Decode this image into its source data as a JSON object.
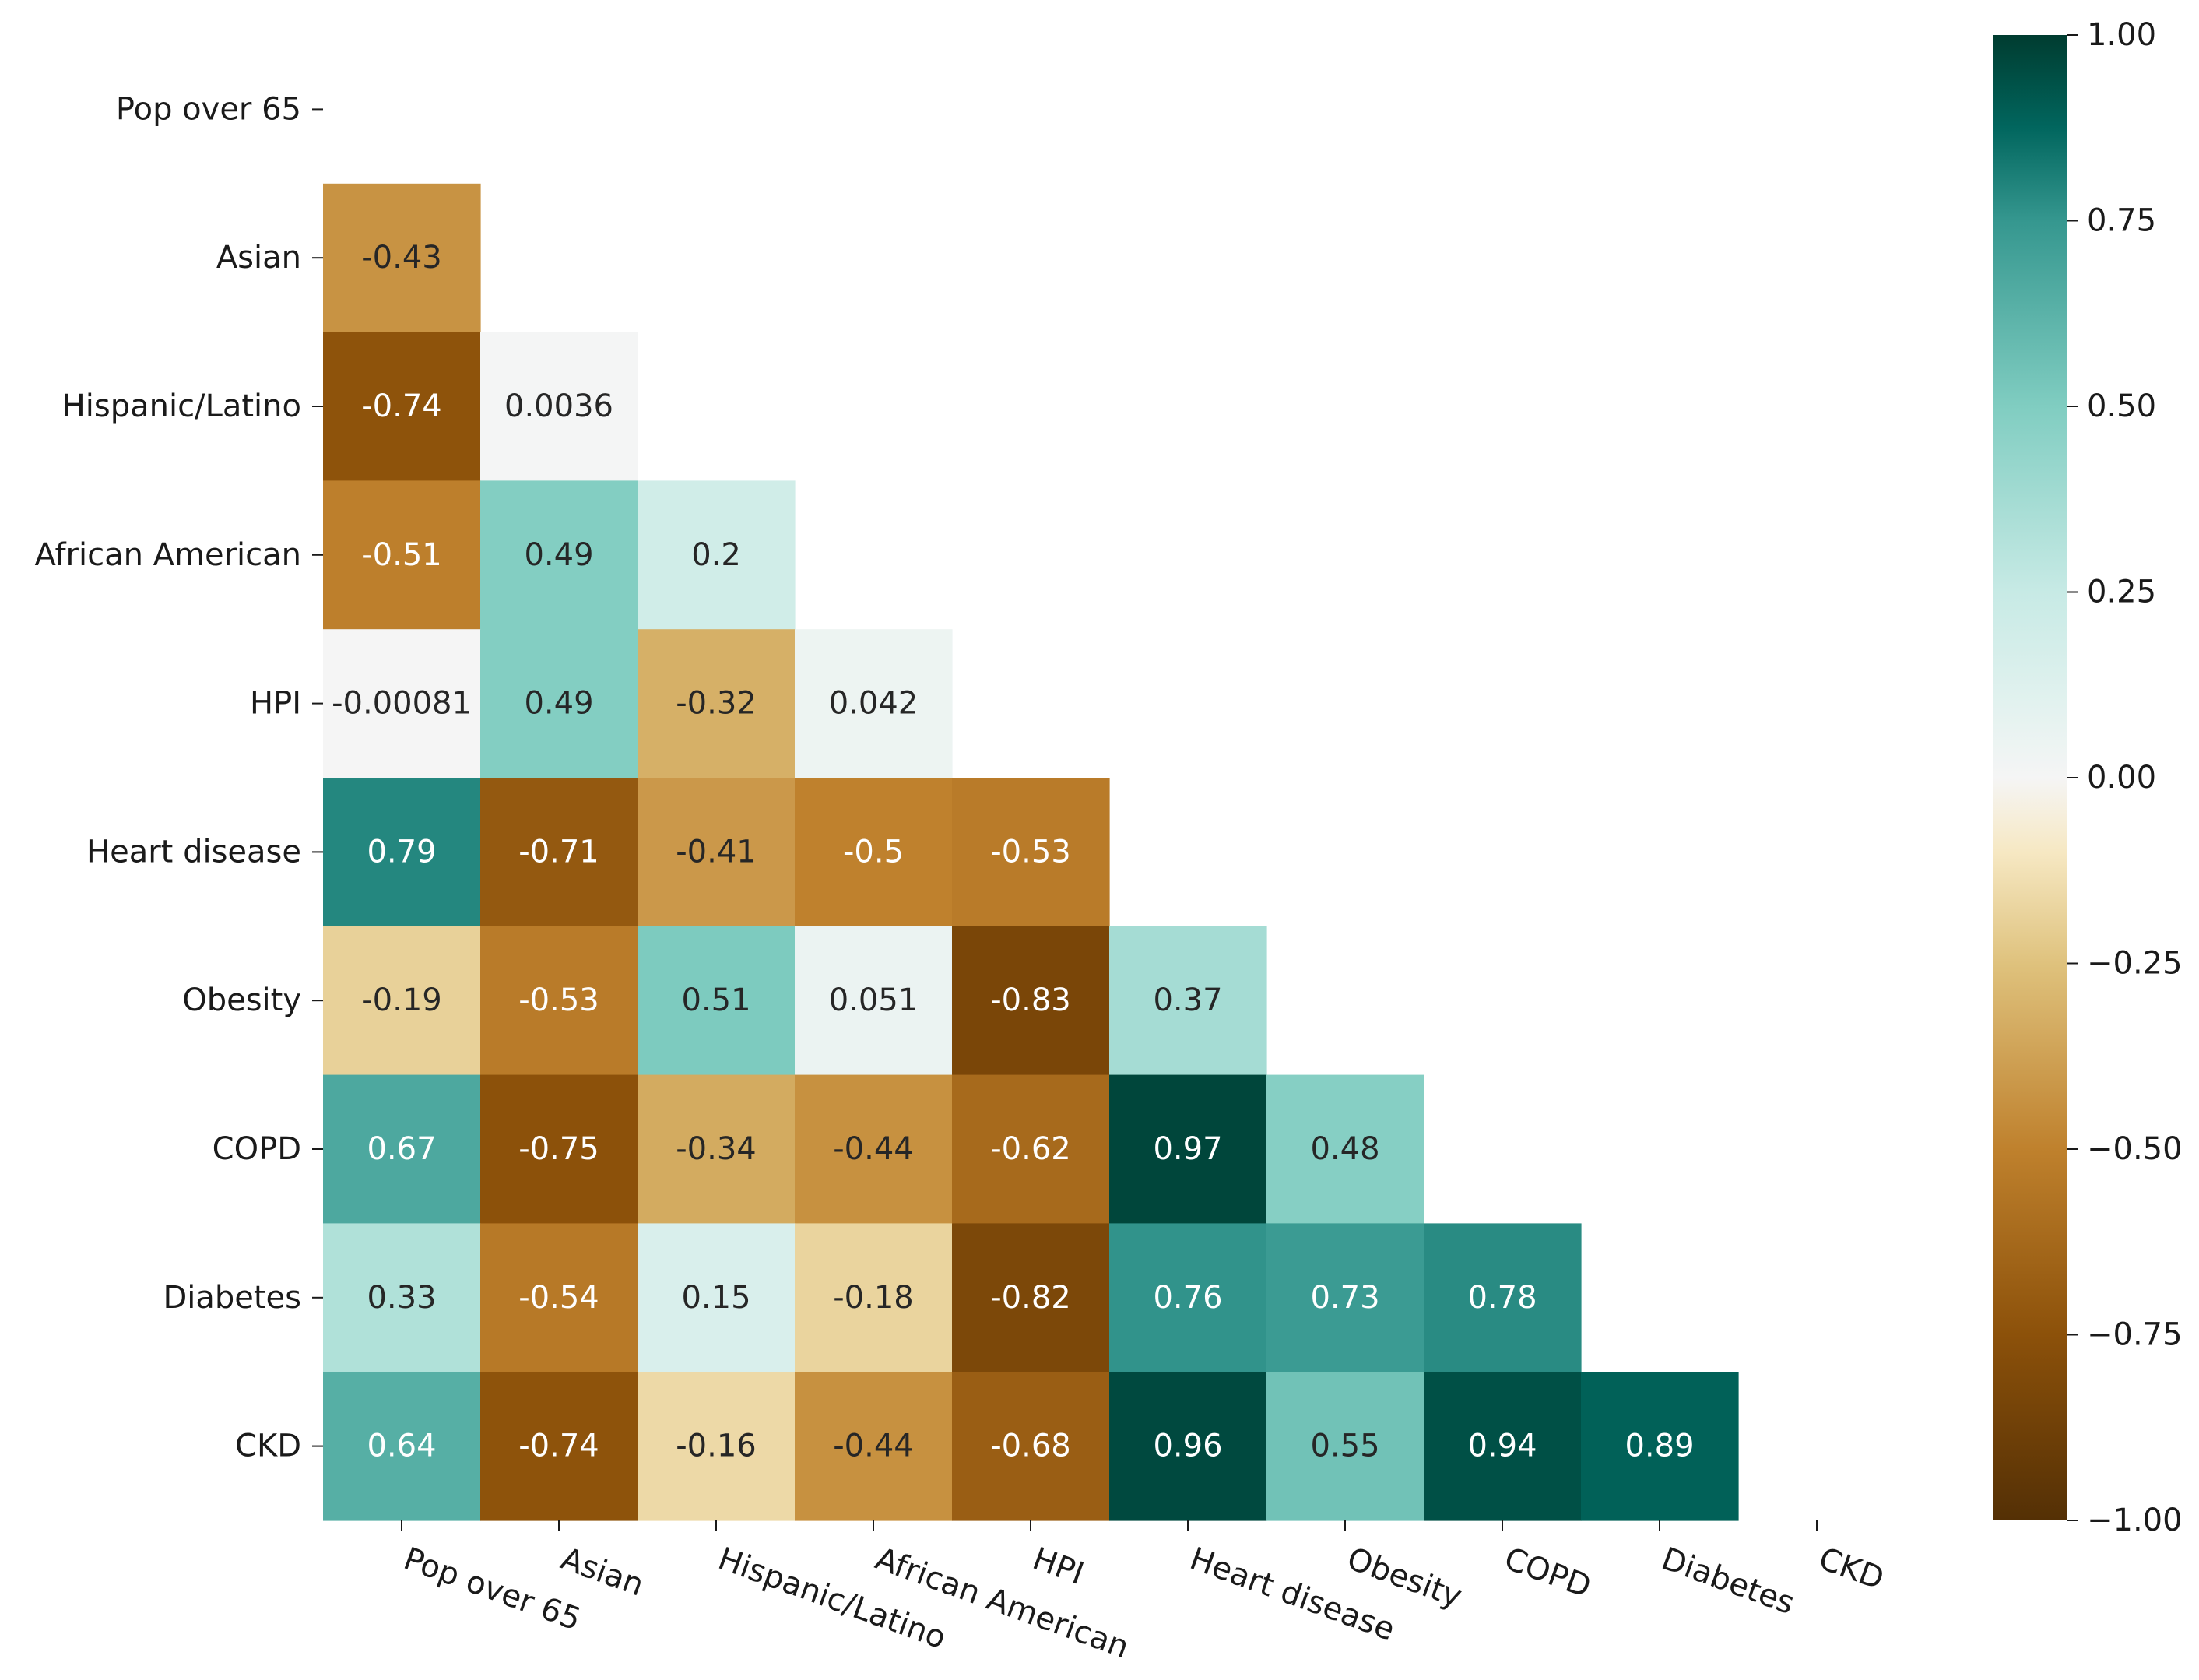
{
  "chart_data": {
    "type": "heatmap",
    "title": "",
    "xlabel": "",
    "ylabel": "",
    "labels": [
      "Pop over 65",
      "Asian",
      "Hispanic/Latino",
      "African American",
      "HPI",
      "Heart disease",
      "Obesity",
      "COPD",
      "Diabetes",
      "CKD"
    ],
    "lower_triangle": [
      [],
      [
        -0.43
      ],
      [
        -0.74,
        0.0036
      ],
      [
        -0.51,
        0.49,
        0.2
      ],
      [
        -0.00081,
        0.49,
        -0.32,
        0.042
      ],
      [
        0.79,
        -0.71,
        -0.41,
        -0.5,
        -0.53
      ],
      [
        -0.19,
        -0.53,
        0.51,
        0.051,
        -0.83,
        0.37
      ],
      [
        0.67,
        -0.75,
        -0.34,
        -0.44,
        -0.62,
        0.97,
        0.48
      ],
      [
        0.33,
        -0.54,
        0.15,
        -0.18,
        -0.82,
        0.76,
        0.73,
        0.78
      ],
      [
        0.64,
        -0.74,
        -0.16,
        -0.44,
        -0.68,
        0.96,
        0.55,
        0.94,
        0.89
      ]
    ],
    "value_labels": [
      [],
      [
        "-0.43"
      ],
      [
        "-0.74",
        "0.0036"
      ],
      [
        "-0.51",
        "0.49",
        "0.2"
      ],
      [
        "-0.00081",
        "0.49",
        "-0.32",
        "0.042"
      ],
      [
        "0.79",
        "-0.71",
        "-0.41",
        "-0.5",
        "-0.53"
      ],
      [
        "-0.19",
        "-0.53",
        "0.51",
        "0.051",
        "-0.83",
        "0.37"
      ],
      [
        "0.67",
        "-0.75",
        "-0.34",
        "-0.44",
        "-0.62",
        "0.97",
        "0.48"
      ],
      [
        "0.33",
        "-0.54",
        "0.15",
        "-0.18",
        "-0.82",
        "0.76",
        "0.73",
        "0.78"
      ],
      [
        "0.64",
        "-0.74",
        "-0.16",
        "-0.44",
        "-0.68",
        "0.96",
        "0.55",
        "0.94",
        "0.89"
      ]
    ],
    "colormap": "BrBG",
    "vmin": -1.0,
    "vmax": 1.0,
    "colorbar_ticks": [
      1.0,
      0.75,
      0.5,
      0.25,
      0.0,
      -0.25,
      -0.5,
      -0.75,
      -1.0
    ],
    "colorbar_tick_labels": [
      "1.00",
      "0.75",
      "0.50",
      "0.25",
      "0.00",
      "−0.25",
      "−0.50",
      "−0.75",
      "−1.00"
    ],
    "colormap_stops": [
      {
        "value": -1.0,
        "color": "#543005"
      },
      {
        "value": -0.75,
        "color": "#8c510a"
      },
      {
        "value": -0.5,
        "color": "#bf812d"
      },
      {
        "value": -0.25,
        "color": "#dfc27d"
      },
      {
        "value": -0.1,
        "color": "#f6e8c3"
      },
      {
        "value": 0.0,
        "color": "#f5f5f5"
      },
      {
        "value": 0.1,
        "color": "#e2f2ef"
      },
      {
        "value": 0.25,
        "color": "#c7eae5"
      },
      {
        "value": 0.5,
        "color": "#80cdc1"
      },
      {
        "value": 0.75,
        "color": "#35978f"
      },
      {
        "value": 0.875,
        "color": "#01665e"
      },
      {
        "value": 1.0,
        "color": "#003c30"
      }
    ],
    "legend": "colorbar-right"
  }
}
